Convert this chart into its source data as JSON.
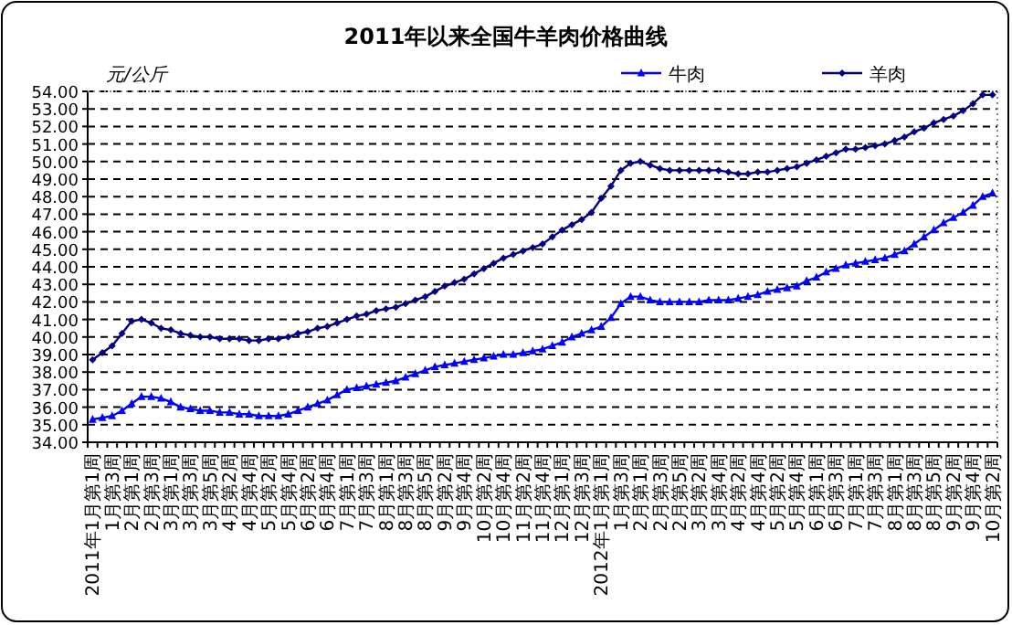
{
  "chart_data": {
    "type": "line",
    "title": "2011年以来全国牛羊肉价格曲线",
    "ylabel": "元/公斤",
    "categories": [
      "2011年1月第1周",
      null,
      "1月第3周",
      null,
      "2月第1周",
      null,
      "2月第3周",
      null,
      "3月第1周",
      null,
      "3月第3周",
      null,
      "3月第5周",
      null,
      "4月第2周",
      null,
      "4月第4周",
      null,
      "5月第2周",
      null,
      "5月第4周",
      null,
      "6月第2周",
      null,
      "6月第4周",
      null,
      "7月第1周",
      null,
      "7月第3周",
      null,
      "8月第1周",
      null,
      "8月第3周",
      null,
      "8月第5周",
      null,
      "9月第2周",
      null,
      "9月第4周",
      null,
      "10月第2周",
      null,
      "10月第4周",
      null,
      "11月第2周",
      null,
      "11月第4周",
      null,
      "12月第1周",
      null,
      "12月第3周",
      null,
      "2012年1月第1周",
      null,
      "1月第3周",
      null,
      "2月第1周",
      null,
      "2月第3周",
      null,
      "2月第5周",
      null,
      "3月第2周",
      null,
      "3月第4周",
      null,
      "4月第2周",
      null,
      "4月第4周",
      null,
      "5月第2周",
      null,
      "5月第4周",
      null,
      "6月第1周",
      null,
      "6月第3周",
      null,
      "7月第1周",
      null,
      "7月第3周",
      null,
      "8月第1周",
      null,
      "8月第3周",
      null,
      "8月第5周",
      null,
      "9月第2周",
      null,
      "9月第4周",
      null,
      "10月第2周"
    ],
    "series": [
      {
        "name": "牛肉",
        "color": "#0000ff",
        "marker": "triangle",
        "values": [
          35.3,
          35.4,
          35.5,
          35.8,
          36.2,
          36.6,
          36.6,
          36.5,
          36.3,
          36.0,
          35.9,
          35.8,
          35.8,
          35.7,
          35.7,
          35.6,
          35.6,
          35.5,
          35.5,
          35.5,
          35.6,
          35.8,
          36.0,
          36.2,
          36.4,
          36.7,
          37.0,
          37.1,
          37.2,
          37.3,
          37.4,
          37.5,
          37.7,
          37.9,
          38.1,
          38.3,
          38.4,
          38.5,
          38.6,
          38.7,
          38.8,
          38.9,
          39.0,
          39.0,
          39.1,
          39.2,
          39.3,
          39.5,
          39.7,
          40.0,
          40.2,
          40.4,
          40.6,
          41.1,
          41.9,
          42.3,
          42.3,
          42.1,
          42.0,
          42.0,
          42.0,
          42.0,
          42.0,
          42.1,
          42.1,
          42.1,
          42.2,
          42.3,
          42.4,
          42.6,
          42.7,
          42.8,
          42.9,
          43.2,
          43.4,
          43.7,
          43.9,
          44.1,
          44.2,
          44.3,
          44.4,
          44.5,
          44.7,
          44.9,
          45.3,
          45.7,
          46.1,
          46.5,
          46.8,
          47.1,
          47.5,
          48.0,
          48.2
        ]
      },
      {
        "name": "羊肉",
        "color": "#000080",
        "marker": "diamond",
        "values": [
          38.7,
          39.1,
          39.5,
          40.2,
          40.9,
          41.0,
          40.8,
          40.5,
          40.4,
          40.2,
          40.1,
          40.0,
          40.0,
          39.9,
          39.9,
          39.9,
          39.8,
          39.8,
          39.9,
          39.9,
          40.0,
          40.2,
          40.3,
          40.5,
          40.6,
          40.8,
          41.0,
          41.2,
          41.3,
          41.5,
          41.6,
          41.7,
          41.9,
          42.1,
          42.3,
          42.6,
          42.9,
          43.1,
          43.3,
          43.6,
          43.9,
          44.2,
          44.5,
          44.7,
          44.9,
          45.1,
          45.3,
          45.7,
          46.1,
          46.4,
          46.7,
          47.1,
          47.9,
          48.6,
          49.5,
          49.9,
          50.0,
          49.8,
          49.6,
          49.5,
          49.5,
          49.5,
          49.5,
          49.5,
          49.5,
          49.4,
          49.3,
          49.3,
          49.4,
          49.4,
          49.5,
          49.6,
          49.7,
          49.9,
          50.1,
          50.3,
          50.5,
          50.7,
          50.7,
          50.8,
          50.9,
          51.0,
          51.2,
          51.4,
          51.7,
          51.9,
          52.2,
          52.4,
          52.6,
          52.9,
          53.3,
          53.8,
          53.8
        ]
      }
    ],
    "ylim": [
      34,
      54
    ],
    "yticks": [
      {
        "value": 34,
        "label": "34.00"
      },
      {
        "value": 35,
        "label": "35.00"
      },
      {
        "value": 36,
        "label": "36.00"
      },
      {
        "value": 37,
        "label": "37.00"
      },
      {
        "value": 38,
        "label": "38.00"
      },
      {
        "value": 39,
        "label": "39.00"
      },
      {
        "value": 40,
        "label": "40.00"
      },
      {
        "value": 41,
        "label": "41.00"
      },
      {
        "value": 42,
        "label": "42.00"
      },
      {
        "value": 43,
        "label": "43.00"
      },
      {
        "value": 44,
        "label": "44.00"
      },
      {
        "value": 45,
        "label": "45.00"
      },
      {
        "value": 46,
        "label": "46.00"
      },
      {
        "value": 47,
        "label": "47.00"
      },
      {
        "value": 48,
        "label": "48.00"
      },
      {
        "value": 49,
        "label": "49.00"
      },
      {
        "value": 50,
        "label": "50.00"
      },
      {
        "value": 51,
        "label": "51.00"
      },
      {
        "value": 52,
        "label": "52.00"
      },
      {
        "value": 53,
        "label": "53.00"
      },
      {
        "value": 54,
        "label": "54.00"
      }
    ],
    "grid": "y",
    "legend": "top right"
  }
}
